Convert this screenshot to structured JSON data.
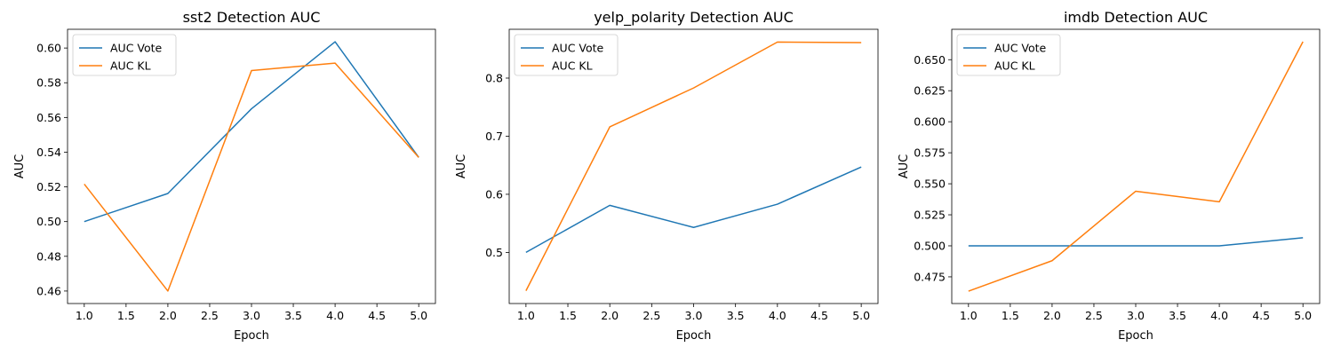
{
  "chart_data": [
    {
      "type": "line",
      "title": "sst2 Detection AUC",
      "xlabel": "Epoch",
      "ylabel": "AUC",
      "x": [
        1,
        2,
        3,
        4,
        5
      ],
      "xticks": [
        "1.0",
        "1.5",
        "2.0",
        "2.5",
        "3.0",
        "3.5",
        "4.0",
        "4.5",
        "5.0"
      ],
      "yticks": [
        "0.46",
        "0.48",
        "0.50",
        "0.52",
        "0.54",
        "0.56",
        "0.58",
        "0.60"
      ],
      "xlim": [
        0.8,
        5.2
      ],
      "ylim": [
        0.4528,
        0.6108
      ],
      "grid": false,
      "legend_position": "top-left",
      "series": [
        {
          "name": "AUC Vote",
          "color": "#1f77b4",
          "values": [
            0.5,
            0.5162,
            0.565,
            0.6036,
            0.537
          ]
        },
        {
          "name": "AUC KL",
          "color": "#ff7f0e",
          "values": [
            0.5216,
            0.46,
            0.587,
            0.5913,
            0.537
          ]
        }
      ]
    },
    {
      "type": "line",
      "title": "yelp_polarity Detection AUC",
      "xlabel": "Epoch",
      "ylabel": "AUC",
      "x": [
        1,
        2,
        3,
        4,
        5
      ],
      "xticks": [
        "1.0",
        "1.5",
        "2.0",
        "2.5",
        "3.0",
        "3.5",
        "4.0",
        "4.5",
        "5.0"
      ],
      "yticks": [
        "0.5",
        "0.6",
        "0.7",
        "0.8"
      ],
      "xlim": [
        0.8,
        5.2
      ],
      "ylim": [
        0.412,
        0.884
      ],
      "grid": false,
      "legend_position": "top-left",
      "series": [
        {
          "name": "AUC Vote",
          "color": "#1f77b4",
          "values": [
            0.5,
            0.581,
            0.543,
            0.583,
            0.647
          ]
        },
        {
          "name": "AUC KL",
          "color": "#ff7f0e",
          "values": [
            0.434,
            0.716,
            0.783,
            0.862,
            0.861
          ]
        }
      ]
    },
    {
      "type": "line",
      "title": "imdb Detection AUC",
      "xlabel": "Epoch",
      "ylabel": "AUC",
      "x": [
        1,
        2,
        3,
        4,
        5
      ],
      "xticks": [
        "1.0",
        "1.5",
        "2.0",
        "2.5",
        "3.0",
        "3.5",
        "4.0",
        "4.5",
        "5.0"
      ],
      "yticks": [
        "0.475",
        "0.500",
        "0.525",
        "0.550",
        "0.575",
        "0.600",
        "0.625",
        "0.650"
      ],
      "xlim": [
        0.8,
        5.2
      ],
      "ylim": [
        0.4535,
        0.6745
      ],
      "grid": false,
      "legend_position": "top-left",
      "series": [
        {
          "name": "AUC Vote",
          "color": "#1f77b4",
          "values": [
            0.5,
            0.5,
            0.5,
            0.5,
            0.5065
          ]
        },
        {
          "name": "AUC KL",
          "color": "#ff7f0e",
          "values": [
            0.4635,
            0.488,
            0.544,
            0.5355,
            0.6645
          ]
        }
      ]
    }
  ]
}
